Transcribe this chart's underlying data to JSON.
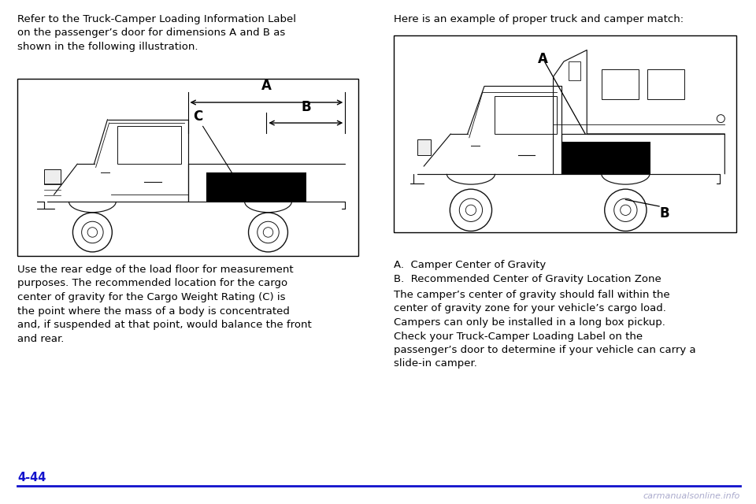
{
  "bg_color": "#ffffff",
  "page_number": "4-44",
  "page_number_color": "#1111cc",
  "text_color": "#000000",
  "para1_left": "Refer to the Truck-Camper Loading Information Label\non the passenger’s door for dimensions A and B as\nshown in the following illustration.",
  "para2_left": "Use the rear edge of the load floor for measurement\npurposes. The recommended location for the cargo\ncenter of gravity for the Cargo Weight Rating (C) is\nthe point where the mass of a body is concentrated\nand, if suspended at that point, would balance the front\nand rear.",
  "para1_right": "Here is an example of proper truck and camper match:",
  "para_A": "A.  Camper Center of Gravity",
  "para_B": "B.  Recommended Center of Gravity Location Zone",
  "para_right_body": "The camper’s center of gravity should fall within the\ncenter of gravity zone for your vehicle’s cargo load.\nCampers can only be installed in a long box pickup.\nCheck your Truck-Camper Loading Label on the\npassenger’s door to determine if your vehicle can carry a\nslide-in camper.",
  "font_size_body": 9.5,
  "line_color_bottom": "#1111cc",
  "watermark": "carmanualsonline.info"
}
